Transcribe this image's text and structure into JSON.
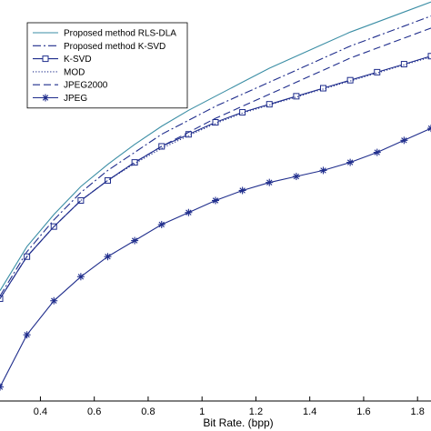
{
  "chart_data": {
    "type": "line",
    "title": "",
    "xlabel": "Bit Rate. (bpp)",
    "ylabel": "",
    "xlim": [
      0.25,
      1.85
    ],
    "ylim": [
      0,
      1
    ],
    "x_ticks": [
      "0.4",
      "0.6",
      "0.8",
      "1",
      "1.2",
      "1.4",
      "1.6",
      "1.8"
    ],
    "grid": false,
    "legend_position": "top-left",
    "series": [
      {
        "name": "Proposed method RLS-DLA",
        "color": "#3b8ea5",
        "dash": "solid",
        "marker": "none",
        "x": [
          0.25,
          0.35,
          0.45,
          0.55,
          0.65,
          0.75,
          0.85,
          0.95,
          1.05,
          1.15,
          1.25,
          1.35,
          1.45,
          1.55,
          1.65,
          1.75,
          1.85
        ],
        "y": [
          0.275,
          0.385,
          0.465,
          0.535,
          0.59,
          0.64,
          0.685,
          0.725,
          0.76,
          0.795,
          0.83,
          0.86,
          0.89,
          0.92,
          0.945,
          0.97,
          0.995
        ]
      },
      {
        "name": "Proposed method K-SVD",
        "color": "#1f2d8c",
        "dash": "dashdot",
        "marker": "none",
        "x": [
          0.25,
          0.35,
          0.45,
          0.55,
          0.65,
          0.75,
          0.85,
          0.95,
          1.05,
          1.15,
          1.25,
          1.35,
          1.45,
          1.55,
          1.65,
          1.75,
          1.85
        ],
        "y": [
          0.262,
          0.372,
          0.452,
          0.52,
          0.575,
          0.62,
          0.665,
          0.7,
          0.735,
          0.765,
          0.795,
          0.825,
          0.855,
          0.885,
          0.91,
          0.935,
          0.96
        ]
      },
      {
        "name": "K-SVD",
        "color": "#1f2d8c",
        "dash": "solid",
        "marker": "square",
        "x": [
          0.25,
          0.35,
          0.45,
          0.55,
          0.65,
          0.75,
          0.85,
          0.95,
          1.05,
          1.15,
          1.25,
          1.35,
          1.45,
          1.55,
          1.65,
          1.75,
          1.85
        ],
        "y": [
          0.255,
          0.36,
          0.435,
          0.5,
          0.55,
          0.595,
          0.635,
          0.665,
          0.695,
          0.72,
          0.74,
          0.76,
          0.78,
          0.8,
          0.82,
          0.84,
          0.86
        ]
      },
      {
        "name": "MOD",
        "color": "#1f2d8c",
        "dash": "dotted",
        "marker": "none",
        "x": [
          0.25,
          0.35,
          0.45,
          0.55,
          0.65,
          0.75,
          0.85,
          0.95,
          1.05,
          1.15,
          1.25,
          1.35,
          1.45,
          1.55,
          1.65,
          1.75,
          1.85
        ],
        "y": [
          0.255,
          0.36,
          0.435,
          0.5,
          0.55,
          0.592,
          0.63,
          0.662,
          0.692,
          0.718,
          0.738,
          0.758,
          0.778,
          0.798,
          0.818,
          0.838,
          0.858
        ]
      },
      {
        "name": "JPEG2000",
        "color": "#1f2d8c",
        "dash": "dashed",
        "marker": "none",
        "x": [
          0.25,
          0.35,
          0.45,
          0.55,
          0.65,
          0.75,
          0.85,
          0.95,
          1.05,
          1.15,
          1.25,
          1.35,
          1.45,
          1.55,
          1.65,
          1.75,
          1.85
        ],
        "y": [
          0.255,
          0.36,
          0.435,
          0.5,
          0.55,
          0.595,
          0.635,
          0.67,
          0.705,
          0.735,
          0.765,
          0.795,
          0.825,
          0.855,
          0.88,
          0.905,
          0.93
        ]
      },
      {
        "name": "JPEG",
        "color": "#1f2d8c",
        "dash": "solid",
        "marker": "asterisk",
        "x": [
          0.25,
          0.35,
          0.45,
          0.55,
          0.65,
          0.75,
          0.85,
          0.95,
          1.05,
          1.15,
          1.25,
          1.35,
          1.45,
          1.55,
          1.65,
          1.75,
          1.85
        ],
        "y": [
          0.035,
          0.165,
          0.25,
          0.31,
          0.36,
          0.4,
          0.44,
          0.47,
          0.5,
          0.525,
          0.545,
          0.56,
          0.575,
          0.595,
          0.62,
          0.65,
          0.68
        ]
      }
    ]
  }
}
